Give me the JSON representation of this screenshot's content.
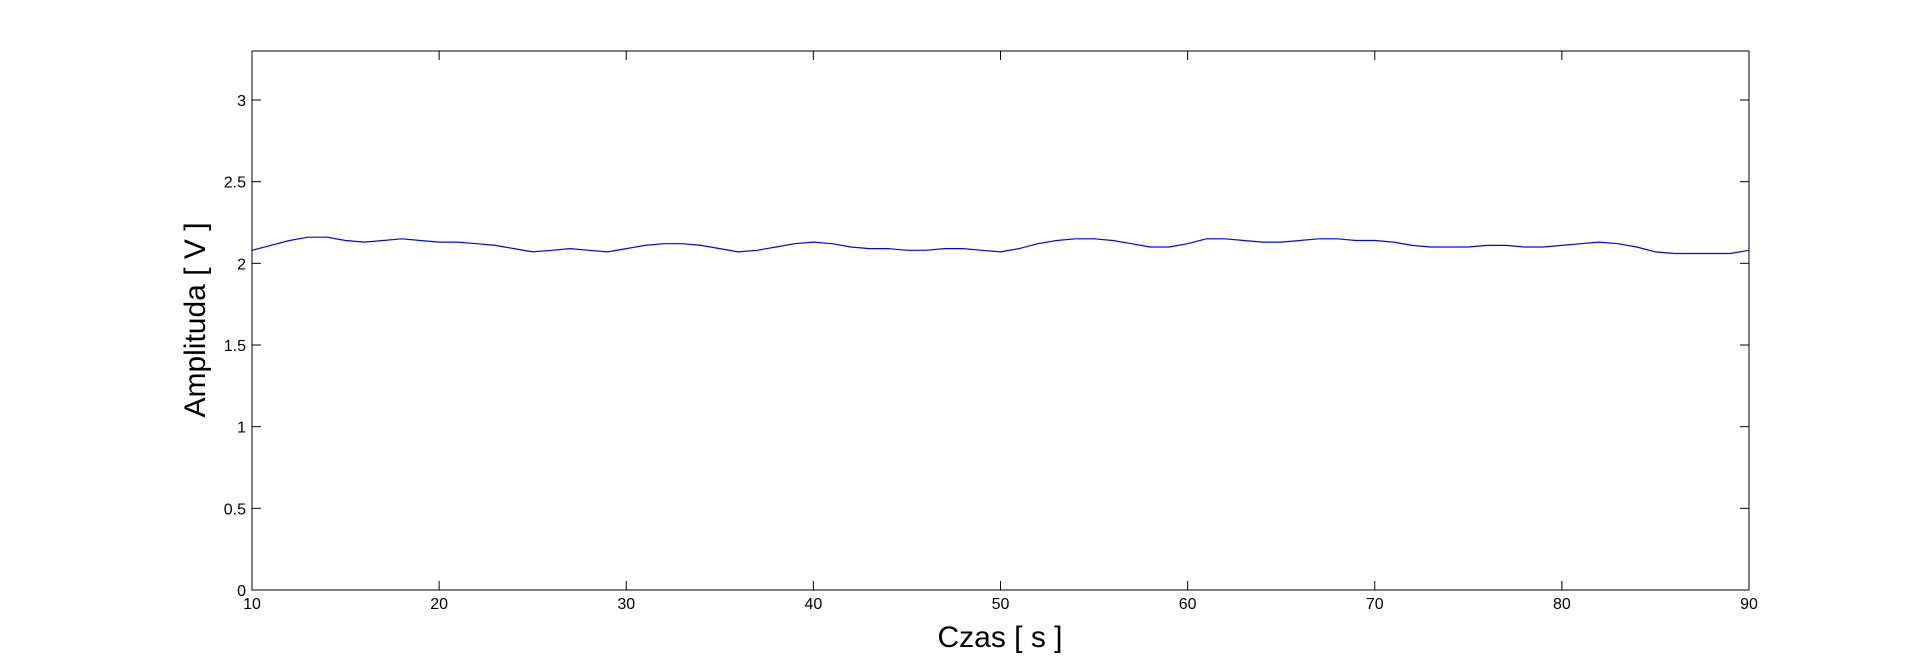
{
  "chart_data": {
    "type": "line",
    "title": "",
    "xlabel": "Czas [ s ]",
    "ylabel": "Amplituda [ V ]",
    "xlim": [
      10,
      90
    ],
    "ylim": [
      0,
      3.3
    ],
    "xticks": [
      10,
      20,
      30,
      40,
      50,
      60,
      70,
      80,
      90
    ],
    "xtick_labels": [
      "10",
      "20",
      "30",
      "40",
      "50",
      "60",
      "70",
      "80",
      "90"
    ],
    "yticks": [
      0,
      0.5,
      1,
      1.5,
      2,
      2.5,
      3
    ],
    "ytick_labels": [
      "0",
      "0.5",
      "1",
      "1.5",
      "2",
      "2.5",
      "3"
    ],
    "grid": false,
    "legend": "none",
    "series_color": "#0000ff",
    "series": [
      {
        "x": [
          10,
          11,
          12,
          13,
          14,
          15,
          16,
          17,
          18,
          19,
          20,
          21,
          22,
          23,
          24,
          25,
          26,
          27,
          28,
          29,
          30,
          31,
          32,
          33,
          34,
          35,
          36,
          37,
          38,
          39,
          40,
          41,
          42,
          43,
          44,
          45,
          46,
          47,
          48,
          49,
          50,
          51,
          52,
          53,
          54,
          55,
          56,
          57,
          58,
          59,
          60,
          61,
          62,
          63,
          64,
          65,
          66,
          67,
          68,
          69,
          70,
          71,
          72,
          73,
          74,
          75,
          76,
          77,
          78,
          79,
          80,
          81,
          82,
          83,
          84,
          85,
          86,
          87,
          88,
          89,
          90
        ],
        "values": [
          2.08,
          2.11,
          2.14,
          2.16,
          2.16,
          2.14,
          2.13,
          2.14,
          2.15,
          2.14,
          2.13,
          2.13,
          2.12,
          2.11,
          2.09,
          2.07,
          2.08,
          2.09,
          2.08,
          2.07,
          2.09,
          2.11,
          2.12,
          2.12,
          2.11,
          2.09,
          2.07,
          2.08,
          2.1,
          2.12,
          2.13,
          2.12,
          2.1,
          2.09,
          2.09,
          2.08,
          2.08,
          2.09,
          2.09,
          2.08,
          2.07,
          2.09,
          2.12,
          2.14,
          2.15,
          2.15,
          2.14,
          2.12,
          2.1,
          2.1,
          2.12,
          2.15,
          2.15,
          2.14,
          2.13,
          2.13,
          2.14,
          2.15,
          2.15,
          2.14,
          2.14,
          2.13,
          2.11,
          2.1,
          2.1,
          2.1,
          2.11,
          2.11,
          2.1,
          2.1,
          2.11,
          2.12,
          2.13,
          2.12,
          2.1,
          2.07,
          2.06,
          2.06,
          2.06,
          2.06,
          2.08
        ]
      }
    ]
  }
}
